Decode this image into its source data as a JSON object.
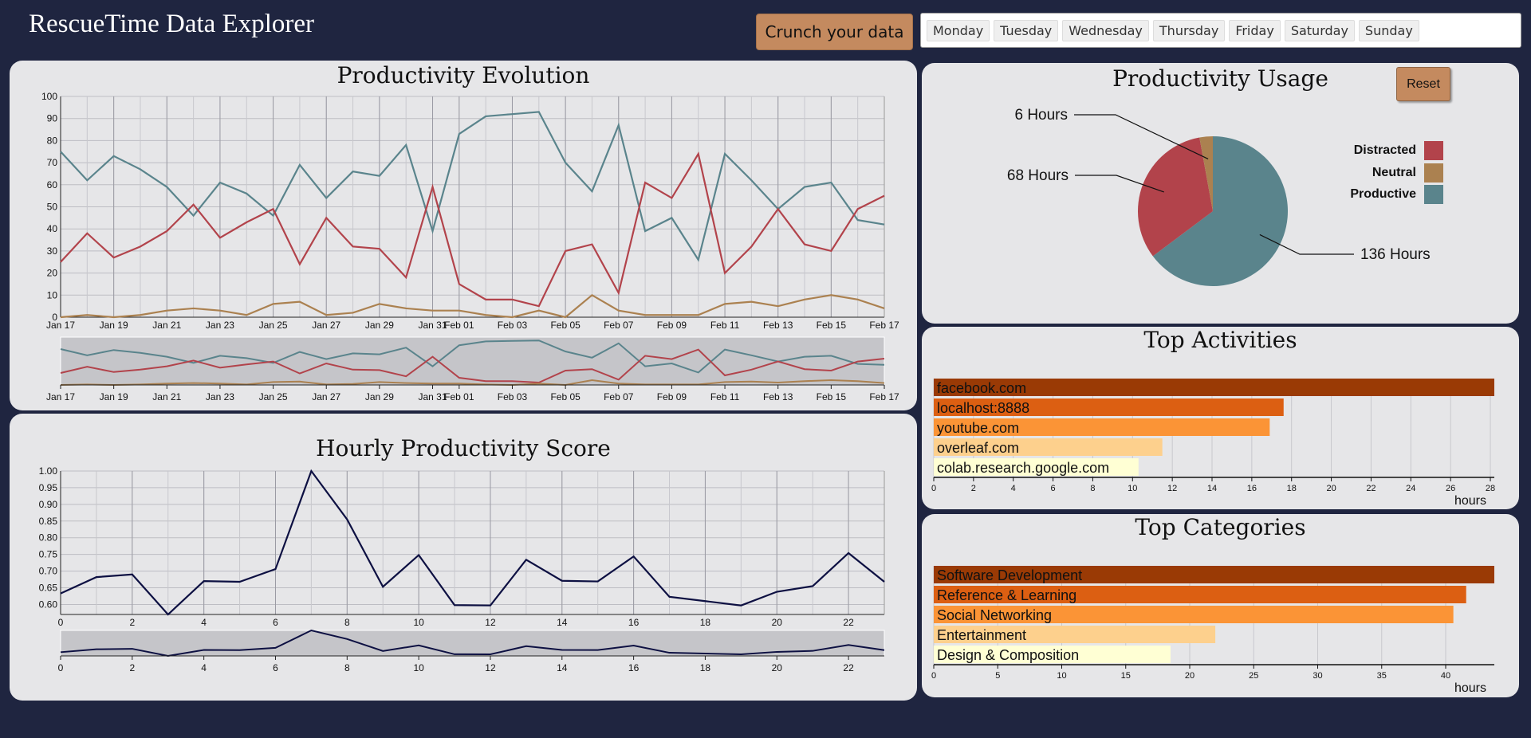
{
  "app": {
    "title": "RescueTime Data Explorer"
  },
  "toolbar": {
    "crunch_label": "Crunch your data",
    "days": [
      "Monday",
      "Tuesday",
      "Wednesday",
      "Thursday",
      "Friday",
      "Saturday",
      "Sunday"
    ]
  },
  "colors": {
    "background": "#1f2540",
    "panel": "#e6e6e8",
    "distracted": "#b2434b",
    "neutral": "#ab8150",
    "productive": "#5a848c",
    "hourly_line": "#0d1042",
    "button": "#c48a5f"
  },
  "evolution": {
    "title": "Productivity Evolution",
    "chart_data": {
      "type": "line",
      "x": [
        "Jan 17",
        "Jan 18",
        "Jan 19",
        "Jan 20",
        "Jan 21",
        "Jan 22",
        "Jan 23",
        "Jan 24",
        "Jan 25",
        "Jan 26",
        "Jan 27",
        "Jan 28",
        "Jan 29",
        "Jan 30",
        "Jan 31",
        "Feb 01",
        "Feb 02",
        "Feb 03",
        "Feb 04",
        "Feb 05",
        "Feb 06",
        "Feb 07",
        "Feb 08",
        "Feb 09",
        "Feb 10",
        "Feb 11",
        "Feb 12",
        "Feb 13",
        "Feb 14",
        "Feb 15",
        "Feb 16",
        "Feb 17"
      ],
      "x_ticks": [
        "Jan 17",
        "Jan 19",
        "Jan 21",
        "Jan 23",
        "Jan 25",
        "Jan 27",
        "Jan 29",
        "Jan 31",
        "Feb 01",
        "Feb 03",
        "Feb 05",
        "Feb 07",
        "Feb 09",
        "Feb 11",
        "Feb 13",
        "Feb 15",
        "Feb 17"
      ],
      "y_ticks": [
        0,
        10,
        20,
        30,
        40,
        50,
        60,
        70,
        80,
        90,
        100
      ],
      "ylim": [
        0,
        100
      ],
      "grid": true,
      "series": [
        {
          "key": "productive",
          "values": [
            75,
            62,
            73,
            67,
            59,
            46,
            61,
            56,
            46,
            69,
            54,
            66,
            64,
            78,
            39,
            83,
            91,
            92,
            93,
            70,
            57,
            87,
            39,
            45,
            26,
            74,
            62,
            49,
            59,
            61,
            44,
            42
          ]
        },
        {
          "key": "distracted",
          "values": [
            25,
            38,
            27,
            32,
            39,
            51,
            36,
            43,
            49,
            24,
            45,
            32,
            31,
            18,
            59,
            15,
            8,
            8,
            5,
            30,
            33,
            11,
            61,
            54,
            74,
            20,
            32,
            49,
            33,
            30,
            49,
            55
          ]
        },
        {
          "key": "neutral",
          "values": [
            0,
            1,
            0,
            1,
            3,
            4,
            3,
            1,
            6,
            7,
            1,
            2,
            6,
            4,
            3,
            3,
            1,
            0,
            3,
            0,
            10,
            3,
            1,
            1,
            1,
            6,
            7,
            5,
            8,
            10,
            8,
            4
          ]
        }
      ]
    }
  },
  "hourly": {
    "title": "Hourly Productivity Score",
    "chart_data": {
      "type": "line",
      "x": [
        0,
        1,
        2,
        3,
        4,
        5,
        6,
        7,
        8,
        9,
        10,
        11,
        12,
        13,
        14,
        15,
        16,
        17,
        18,
        19,
        20,
        21,
        22,
        23
      ],
      "x_ticks": [
        0,
        2,
        4,
        6,
        8,
        10,
        12,
        14,
        16,
        18,
        20,
        22
      ],
      "y_ticks": [
        "1.00",
        "0.95",
        "0.90",
        "0.85",
        "0.80",
        "0.75",
        "0.70",
        "0.65",
        "0.60"
      ],
      "ylim": [
        0.57,
        1.0
      ],
      "grid": true,
      "series": [
        {
          "values": [
            0.633,
            0.682,
            0.69,
            0.57,
            0.67,
            0.668,
            0.706,
            1.0,
            0.855,
            0.653,
            0.748,
            0.598,
            0.597,
            0.734,
            0.671,
            0.669,
            0.744,
            0.623,
            0.61,
            0.597,
            0.638,
            0.655,
            0.754,
            0.668
          ]
        }
      ]
    }
  },
  "usage": {
    "title": "Productivity Usage",
    "reset_label": "Reset",
    "chart_data": {
      "type": "pie",
      "unit": "Hours",
      "slices": [
        {
          "label": "Productive",
          "value": 136,
          "display": "136 Hours"
        },
        {
          "label": "Distracted",
          "value": 68,
          "display": "68 Hours"
        },
        {
          "label": "Neutral",
          "value": 6,
          "display": "6 Hours"
        }
      ],
      "legend": [
        {
          "label": "Distracted",
          "color": "#b2434b"
        },
        {
          "label": "Neutral",
          "color": "#ab8150"
        },
        {
          "label": "Productive",
          "color": "#5a848c"
        }
      ],
      "legend_position": "right"
    }
  },
  "activities": {
    "title": "Top Activities",
    "chart_data": {
      "type": "bar",
      "orientation": "horizontal",
      "categories": [
        "facebook.com",
        "localhost:8888",
        "youtube.com",
        "overleaf.com",
        "colab.research.google.com"
      ],
      "values": [
        28.2,
        17.6,
        16.9,
        11.5,
        10.3
      ],
      "x_ticks": [
        0,
        2,
        4,
        6,
        8,
        10,
        12,
        14,
        16,
        18,
        20,
        22,
        24,
        26,
        28
      ],
      "xlim": [
        0,
        28.2
      ],
      "xlabel": "hours",
      "colors": [
        "#9a3a05",
        "#dc5f12",
        "#fb9436",
        "#fdd08d",
        "#ffffd4"
      ]
    }
  },
  "categories": {
    "title": "Top Categories",
    "chart_data": {
      "type": "bar",
      "orientation": "horizontal",
      "categories": [
        "Software Development",
        "Reference & Learning",
        "Social Networking",
        "Entertainment",
        "Design & Composition"
      ],
      "values": [
        43.8,
        41.6,
        40.6,
        22.0,
        18.5
      ],
      "x_ticks": [
        0,
        5,
        10,
        15,
        20,
        25,
        30,
        35,
        40
      ],
      "xlim": [
        0,
        43.8
      ],
      "xlabel": "hours",
      "colors": [
        "#9a3a05",
        "#dc5f12",
        "#fb9436",
        "#fdd08d",
        "#ffffd4"
      ]
    }
  }
}
